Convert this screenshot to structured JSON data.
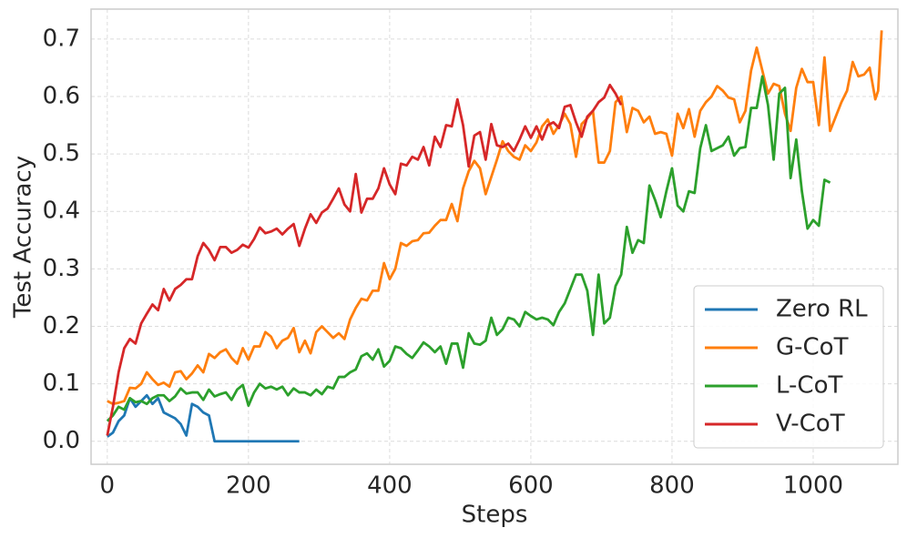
{
  "chart_data": {
    "type": "line",
    "x_label": "Steps",
    "y_label": "Test Accuracy",
    "xlim": [
      -23,
      1120
    ],
    "ylim": [
      -0.04,
      0.752
    ],
    "xticks": [
      0,
      200,
      400,
      600,
      800,
      1000
    ],
    "yticks": [
      {
        "value": 0,
        "label": "0.0"
      },
      0.1,
      0.2,
      0.3,
      0.4,
      0.5,
      0.6,
      0.7
    ],
    "grid": true,
    "legend": "lower right",
    "series": [
      {
        "name": "Zero RL",
        "color": "#1f77b4",
        "x": [
          0,
          8,
          16,
          24,
          32,
          40,
          48,
          56,
          64,
          72,
          80,
          96,
          104,
          112,
          120,
          128,
          136,
          144,
          152,
          272
        ],
        "values": [
          0.008,
          0.015,
          0.035,
          0.045,
          0.075,
          0.06,
          0.07,
          0.08,
          0.065,
          0.075,
          0.05,
          0.04,
          0.03,
          0.01,
          0.065,
          0.06,
          0.05,
          0.045,
          0,
          0
        ]
      },
      {
        "name": "G-CoT",
        "color": "#ff7f0e",
        "x": [
          0,
          8,
          16,
          24,
          32,
          40,
          48,
          56,
          64,
          72,
          80,
          88,
          96,
          104,
          112,
          120,
          128,
          136,
          144,
          152,
          160,
          168,
          176,
          184,
          192,
          200,
          208,
          216,
          224,
          232,
          240,
          248,
          256,
          264,
          272,
          280,
          288,
          296,
          304,
          312,
          320,
          328,
          336,
          344,
          352,
          360,
          368,
          376,
          384,
          392,
          400,
          408,
          416,
          424,
          432,
          440,
          448,
          456,
          464,
          472,
          480,
          488,
          496,
          504,
          512,
          520,
          528,
          536,
          544,
          552,
          560,
          568,
          576,
          584,
          592,
          600,
          608,
          616,
          624,
          632,
          640,
          648,
          656,
          664,
          672,
          680,
          688,
          696,
          704,
          712,
          720,
          728,
          736,
          744,
          752,
          760,
          768,
          776,
          784,
          792,
          800,
          808,
          816,
          824,
          832,
          840,
          848,
          856,
          864,
          872,
          880,
          888,
          896,
          904,
          912,
          920,
          928,
          936,
          944,
          952,
          960,
          968,
          976,
          984,
          992,
          1000,
          1008,
          1016,
          1024,
          1032,
          1040,
          1048,
          1056,
          1064,
          1072,
          1080,
          1088,
          1092,
          1097
        ],
        "values": [
          0.07,
          0.065,
          0.067,
          0.07,
          0.093,
          0.092,
          0.1,
          0.12,
          0.108,
          0.098,
          0.102,
          0.095,
          0.12,
          0.122,
          0.108,
          0.118,
          0.132,
          0.12,
          0.152,
          0.145,
          0.155,
          0.16,
          0.145,
          0.135,
          0.162,
          0.142,
          0.165,
          0.165,
          0.19,
          0.182,
          0.162,
          0.175,
          0.18,
          0.197,
          0.155,
          0.175,
          0.153,
          0.19,
          0.2,
          0.19,
          0.18,
          0.188,
          0.178,
          0.212,
          0.232,
          0.248,
          0.245,
          0.262,
          0.262,
          0.31,
          0.282,
          0.3,
          0.345,
          0.34,
          0.348,
          0.35,
          0.362,
          0.363,
          0.375,
          0.385,
          0.385,
          0.413,
          0.383,
          0.44,
          0.47,
          0.488,
          0.475,
          0.43,
          0.46,
          0.49,
          0.522,
          0.505,
          0.495,
          0.49,
          0.515,
          0.505,
          0.52,
          0.548,
          0.56,
          0.535,
          0.55,
          0.57,
          0.552,
          0.495,
          0.552,
          0.562,
          0.575,
          0.485,
          0.485,
          0.505,
          0.59,
          0.6,
          0.538,
          0.58,
          0.575,
          0.555,
          0.565,
          0.535,
          0.538,
          0.535,
          0.497,
          0.57,
          0.545,
          0.578,
          0.53,
          0.575,
          0.59,
          0.6,
          0.618,
          0.61,
          0.598,
          0.595,
          0.555,
          0.575,
          0.645,
          0.685,
          0.645,
          0.605,
          0.622,
          0.618,
          0.57,
          0.54,
          0.615,
          0.648,
          0.625,
          0.625,
          0.55,
          0.668,
          0.54,
          0.565,
          0.59,
          0.61,
          0.66,
          0.635,
          0.638,
          0.65,
          0.595,
          0.61,
          0.715
        ]
      },
      {
        "name": "L-CoT",
        "color": "#2ca02c",
        "x": [
          0,
          8,
          16,
          24,
          32,
          40,
          48,
          56,
          64,
          72,
          80,
          88,
          96,
          104,
          112,
          120,
          128,
          136,
          144,
          152,
          160,
          168,
          176,
          184,
          192,
          200,
          208,
          216,
          224,
          232,
          240,
          248,
          256,
          264,
          272,
          280,
          288,
          296,
          304,
          312,
          320,
          328,
          336,
          344,
          352,
          360,
          368,
          376,
          384,
          392,
          400,
          408,
          416,
          424,
          432,
          440,
          448,
          456,
          464,
          472,
          480,
          488,
          496,
          504,
          512,
          520,
          528,
          536,
          544,
          552,
          560,
          568,
          576,
          584,
          592,
          600,
          608,
          616,
          624,
          632,
          640,
          648,
          656,
          664,
          672,
          680,
          688,
          696,
          704,
          712,
          720,
          728,
          736,
          744,
          752,
          760,
          768,
          776,
          784,
          792,
          800,
          808,
          816,
          824,
          832,
          840,
          848,
          856,
          864,
          872,
          880,
          888,
          896,
          904,
          912,
          920,
          928,
          936,
          944,
          952,
          960,
          968,
          976,
          984,
          992,
          1000,
          1008,
          1016,
          1024
        ],
        "values": [
          0.035,
          0.045,
          0.06,
          0.055,
          0.075,
          0.068,
          0.07,
          0.065,
          0.075,
          0.08,
          0.08,
          0.07,
          0.078,
          0.092,
          0.083,
          0.085,
          0.085,
          0.072,
          0.09,
          0.078,
          0.082,
          0.085,
          0.072,
          0.09,
          0.098,
          0.062,
          0.085,
          0.1,
          0.092,
          0.095,
          0.09,
          0.095,
          0.08,
          0.092,
          0.085,
          0.085,
          0.08,
          0.09,
          0.082,
          0.095,
          0.092,
          0.112,
          0.112,
          0.12,
          0.125,
          0.148,
          0.153,
          0.142,
          0.16,
          0.13,
          0.14,
          0.165,
          0.162,
          0.152,
          0.145,
          0.158,
          0.172,
          0.165,
          0.155,
          0.165,
          0.135,
          0.17,
          0.17,
          0.128,
          0.188,
          0.17,
          0.168,
          0.175,
          0.215,
          0.185,
          0.195,
          0.215,
          0.212,
          0.2,
          0.225,
          0.218,
          0.212,
          0.215,
          0.212,
          0.202,
          0.225,
          0.24,
          0.265,
          0.29,
          0.29,
          0.262,
          0.185,
          0.29,
          0.205,
          0.215,
          0.27,
          0.29,
          0.373,
          0.328,
          0.35,
          0.345,
          0.445,
          0.42,
          0.39,
          0.435,
          0.475,
          0.41,
          0.4,
          0.435,
          0.432,
          0.51,
          0.55,
          0.505,
          0.51,
          0.515,
          0.53,
          0.497,
          0.51,
          0.512,
          0.58,
          0.58,
          0.635,
          0.585,
          0.49,
          0.605,
          0.615,
          0.458,
          0.525,
          0.435,
          0.37,
          0.385,
          0.375,
          0.455,
          0.45
        ]
      },
      {
        "name": "V-CoT",
        "color": "#d62728",
        "x": [
          0,
          8,
          16,
          24,
          32,
          40,
          48,
          56,
          64,
          72,
          80,
          88,
          96,
          104,
          112,
          120,
          128,
          136,
          144,
          152,
          160,
          168,
          176,
          184,
          192,
          200,
          208,
          216,
          224,
          232,
          240,
          248,
          256,
          264,
          272,
          280,
          288,
          296,
          304,
          312,
          320,
          328,
          336,
          344,
          352,
          360,
          368,
          376,
          384,
          392,
          400,
          408,
          416,
          424,
          432,
          440,
          448,
          456,
          464,
          472,
          480,
          488,
          496,
          504,
          512,
          520,
          528,
          536,
          544,
          552,
          560,
          568,
          576,
          584,
          592,
          600,
          608,
          616,
          624,
          632,
          640,
          648,
          656,
          664,
          672,
          680,
          688,
          696,
          704,
          712,
          720,
          728
        ],
        "values": [
          0.01,
          0.06,
          0.12,
          0.162,
          0.178,
          0.17,
          0.205,
          0.222,
          0.238,
          0.228,
          0.265,
          0.245,
          0.265,
          0.272,
          0.282,
          0.282,
          0.322,
          0.345,
          0.333,
          0.315,
          0.338,
          0.338,
          0.328,
          0.333,
          0.342,
          0.337,
          0.352,
          0.372,
          0.362,
          0.365,
          0.37,
          0.36,
          0.37,
          0.378,
          0.34,
          0.37,
          0.395,
          0.38,
          0.398,
          0.405,
          0.422,
          0.44,
          0.412,
          0.4,
          0.465,
          0.398,
          0.422,
          0.422,
          0.44,
          0.475,
          0.447,
          0.43,
          0.483,
          0.48,
          0.495,
          0.49,
          0.512,
          0.48,
          0.53,
          0.512,
          0.55,
          0.548,
          0.595,
          0.55,
          0.478,
          0.532,
          0.538,
          0.49,
          0.552,
          0.515,
          0.512,
          0.518,
          0.505,
          0.525,
          0.548,
          0.528,
          0.548,
          0.525,
          0.55,
          0.555,
          0.545,
          0.582,
          0.585,
          0.555,
          0.53,
          0.565,
          0.575,
          0.59,
          0.598,
          0.62,
          0.605,
          0.585
        ]
      }
    ]
  }
}
